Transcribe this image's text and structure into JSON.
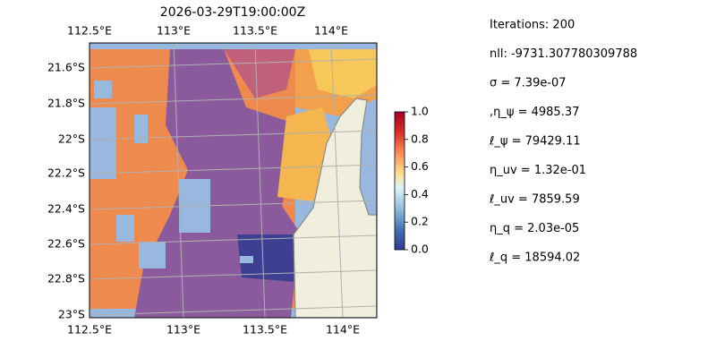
{
  "map": {
    "title": "2026-03-29T19:00:00Z",
    "lon_labels": [
      "112.5°E",
      "113°E",
      "113.5°E",
      "114°E"
    ],
    "lat_labels": [
      "21.6°S",
      "21.8°S",
      "22°S",
      "22.2°S",
      "22.4°S",
      "22.6°S",
      "22.8°S",
      "23°S"
    ]
  },
  "colorbar": {
    "lim": [
      0,
      1
    ],
    "ticks": [
      {
        "value": 0,
        "label": "0.0"
      },
      {
        "value": 0.2,
        "label": "0.2"
      },
      {
        "value": 0.4,
        "label": "0.4"
      },
      {
        "value": 0.6,
        "label": "0.6"
      },
      {
        "value": 0.8,
        "label": "0.8"
      },
      {
        "value": 1,
        "label": "1.0"
      }
    ]
  },
  "params": [
    "Iterations: 200",
    "nll: -9731.307780309788",
    "σ = 7.39e-07",
    ",η_ψ = 4985.37",
    "ℓ_ψ = 79429.11",
    "η_uv = 1.32e-01",
    "ℓ_uv = 7859.59",
    "η_q = 2.03e-05",
    "ℓ_q = 18594.02"
  ]
}
